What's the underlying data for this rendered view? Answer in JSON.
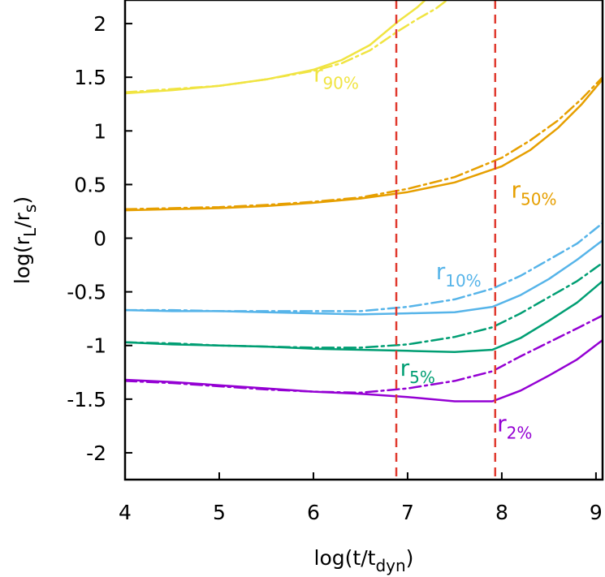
{
  "chart_data": {
    "type": "line",
    "xlabel": {
      "main": "log(t/t",
      "sub": "dyn",
      "tail": ")"
    },
    "ylabel": {
      "main": "log(r",
      "sub1": "L",
      "mid": "/r",
      "sub2": "s",
      "tail": ")"
    },
    "xlim": [
      4,
      9.07
    ],
    "ylim": [
      -2.25,
      2.22
    ],
    "xticks": [
      4,
      5,
      6,
      7,
      8,
      9
    ],
    "xtick_labels": [
      "4",
      "5",
      "6",
      "7",
      "8",
      "9"
    ],
    "yticks": [
      2,
      1.5,
      1,
      0.5,
      0,
      -0.5,
      -1,
      -1.5,
      -2
    ],
    "ytick_labels": [
      "2",
      "1.5",
      "1",
      "0.5",
      "0",
      "-0.5",
      "-1",
      "-1.5",
      "-2"
    ],
    "grid": false,
    "vlines": [
      {
        "x": 6.88,
        "color": "#e03a2f"
      },
      {
        "x": 7.93,
        "color": "#e03a2f"
      }
    ],
    "series": [
      {
        "name": "r90%",
        "color": "#f0e442",
        "style": "solid",
        "x": [
          4.0,
          4.5,
          5.0,
          5.5,
          6.0,
          6.3,
          6.6,
          6.9,
          7.1,
          7.2
        ],
        "y": [
          1.35,
          1.38,
          1.42,
          1.48,
          1.57,
          1.66,
          1.8,
          2.02,
          2.15,
          2.23
        ]
      },
      {
        "name": "r90%",
        "color": "#f0e442",
        "style": "dashdot",
        "x": [
          4.0,
          4.5,
          5.0,
          5.5,
          6.0,
          6.3,
          6.6,
          6.9,
          7.1,
          7.3,
          7.42
        ],
        "y": [
          1.36,
          1.39,
          1.42,
          1.48,
          1.56,
          1.63,
          1.75,
          1.93,
          2.04,
          2.14,
          2.22
        ]
      },
      {
        "name": "r50%",
        "color": "#e69f00",
        "style": "solid",
        "x": [
          4.0,
          4.5,
          5.0,
          5.5,
          6.0,
          6.5,
          7.0,
          7.5,
          8.0,
          8.3,
          8.6,
          8.85,
          9.07
        ],
        "y": [
          0.26,
          0.27,
          0.28,
          0.3,
          0.33,
          0.37,
          0.43,
          0.52,
          0.67,
          0.82,
          1.03,
          1.25,
          1.48
        ]
      },
      {
        "name": "r50%",
        "color": "#e69f00",
        "style": "dashdot",
        "x": [
          4.0,
          4.5,
          5.0,
          5.5,
          6.0,
          6.5,
          7.0,
          7.5,
          8.0,
          8.3,
          8.6,
          8.85,
          9.07
        ],
        "y": [
          0.27,
          0.28,
          0.29,
          0.31,
          0.34,
          0.38,
          0.46,
          0.57,
          0.75,
          0.91,
          1.1,
          1.3,
          1.5
        ]
      },
      {
        "name": "r10%",
        "color": "#56b4e9",
        "style": "solid",
        "x": [
          4.0,
          4.5,
          5.0,
          5.5,
          6.0,
          6.5,
          7.0,
          7.5,
          7.9,
          8.2,
          8.5,
          8.8,
          9.07
        ],
        "y": [
          -0.67,
          -0.68,
          -0.68,
          -0.69,
          -0.7,
          -0.71,
          -0.7,
          -0.69,
          -0.64,
          -0.53,
          -0.38,
          -0.2,
          -0.02
        ]
      },
      {
        "name": "r10%",
        "color": "#56b4e9",
        "style": "dashdot",
        "x": [
          4.0,
          4.5,
          5.0,
          5.5,
          6.0,
          6.5,
          7.0,
          7.5,
          7.9,
          8.2,
          8.5,
          8.8,
          9.07
        ],
        "y": [
          -0.67,
          -0.67,
          -0.68,
          -0.68,
          -0.68,
          -0.68,
          -0.64,
          -0.57,
          -0.47,
          -0.35,
          -0.2,
          -0.05,
          0.14
        ]
      },
      {
        "name": "r5%",
        "color": "#009e73",
        "style": "solid",
        "x": [
          4.0,
          4.5,
          5.0,
          5.5,
          6.0,
          6.5,
          7.0,
          7.5,
          7.9,
          8.2,
          8.5,
          8.8,
          9.07
        ],
        "y": [
          -0.97,
          -0.99,
          -1.0,
          -1.01,
          -1.03,
          -1.04,
          -1.05,
          -1.06,
          -1.04,
          -0.93,
          -0.77,
          -0.6,
          -0.4
        ]
      },
      {
        "name": "r5%",
        "color": "#009e73",
        "style": "dashdot",
        "x": [
          4.0,
          4.5,
          5.0,
          5.5,
          6.0,
          6.5,
          7.0,
          7.5,
          7.9,
          8.2,
          8.5,
          8.8,
          9.07
        ],
        "y": [
          -0.97,
          -0.98,
          -1.0,
          -1.01,
          -1.02,
          -1.02,
          -0.99,
          -0.92,
          -0.83,
          -0.7,
          -0.55,
          -0.4,
          -0.23
        ]
      },
      {
        "name": "r2%",
        "color": "#9400d3",
        "style": "solid",
        "x": [
          4.0,
          4.5,
          5.0,
          5.5,
          6.0,
          6.5,
          7.0,
          7.5,
          7.9,
          8.2,
          8.5,
          8.8,
          9.07
        ],
        "y": [
          -1.32,
          -1.34,
          -1.37,
          -1.4,
          -1.43,
          -1.45,
          -1.48,
          -1.52,
          -1.52,
          -1.42,
          -1.28,
          -1.13,
          -0.95
        ]
      },
      {
        "name": "r2%",
        "color": "#9400d3",
        "style": "dashdot",
        "x": [
          4.0,
          4.5,
          5.0,
          5.5,
          6.0,
          6.5,
          7.0,
          7.5,
          7.9,
          8.2,
          8.5,
          8.8,
          9.07
        ],
        "y": [
          -1.33,
          -1.35,
          -1.38,
          -1.41,
          -1.43,
          -1.44,
          -1.4,
          -1.33,
          -1.24,
          -1.1,
          -0.97,
          -0.84,
          -0.72
        ]
      }
    ],
    "curve_labels": [
      {
        "main": "r",
        "sub": "90%",
        "color": "#f0e442",
        "x": 6.0,
        "y": 1.46
      },
      {
        "main": "r",
        "sub": "50%",
        "color": "#e69f00",
        "x": 8.1,
        "y": 0.38
      },
      {
        "main": "r",
        "sub": "10%",
        "color": "#56b4e9",
        "x": 7.3,
        "y": -0.38
      },
      {
        "main": "r",
        "sub": "5%",
        "color": "#009e73",
        "x": 6.92,
        "y": -1.28
      },
      {
        "main": "r",
        "sub": "2%",
        "color": "#9400d3",
        "x": 7.95,
        "y": -1.8
      }
    ]
  }
}
